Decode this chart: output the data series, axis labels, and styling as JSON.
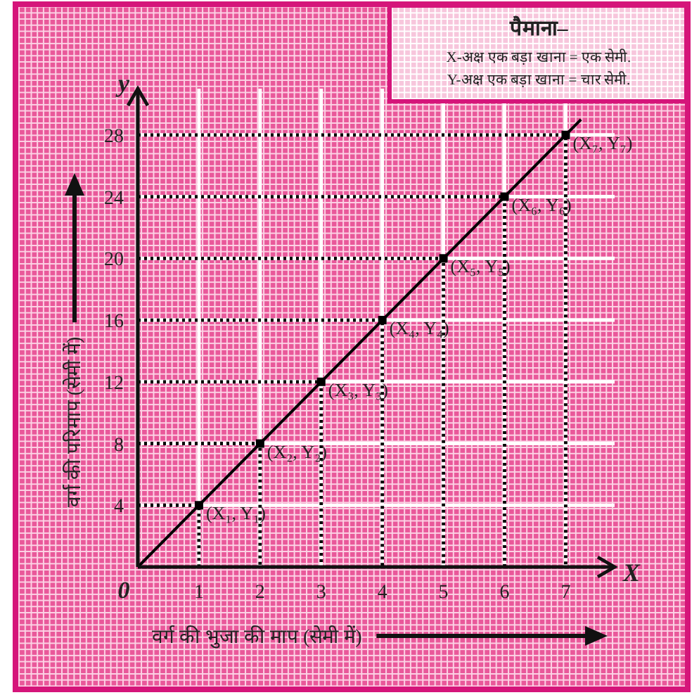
{
  "chart_data": {
    "type": "line",
    "xlabel": "वर्ग की भुजा की माप (सेमी में)",
    "ylabel": "वर्ग की परिमाप (सेमी में)",
    "xlim": [
      0,
      7.8
    ],
    "ylim": [
      0,
      31
    ],
    "xticks": [
      {
        "value": 0,
        "label": "0"
      },
      1,
      2,
      3,
      4,
      5,
      6,
      7
    ],
    "yticks": [
      4,
      8,
      12,
      16,
      20,
      24,
      28
    ],
    "grid": true,
    "series": [
      {
        "color": "#000000",
        "marker": "none",
        "line_style": "solid",
        "x": [
          0,
          7.25
        ],
        "values": [
          0,
          29
        ]
      },
      {
        "type": "scatter",
        "color": "#000000",
        "marker": "square",
        "x": [
          1,
          2,
          3,
          4,
          5,
          6,
          7
        ],
        "values": [
          4,
          8,
          12,
          16,
          20,
          24,
          28
        ]
      },
      {
        "color": "#000000",
        "marker": "none",
        "line_style": "dotted",
        "x": [
          0,
          1,
          1
        ],
        "values": [
          4,
          4,
          0
        ]
      },
      {
        "color": "#000000",
        "marker": "none",
        "line_style": "dotted",
        "x": [
          0,
          2,
          2
        ],
        "values": [
          8,
          8,
          0
        ]
      },
      {
        "color": "#000000",
        "marker": "none",
        "line_style": "dotted",
        "x": [
          0,
          3,
          3
        ],
        "values": [
          12,
          12,
          0
        ]
      },
      {
        "color": "#000000",
        "marker": "none",
        "line_style": "dotted",
        "x": [
          0,
          4,
          4
        ],
        "values": [
          16,
          16,
          0
        ]
      },
      {
        "color": "#000000",
        "marker": "none",
        "line_style": "dotted",
        "x": [
          0,
          5,
          5
        ],
        "values": [
          20,
          20,
          0
        ]
      },
      {
        "color": "#000000",
        "marker": "none",
        "line_style": "dotted",
        "x": [
          0,
          6,
          6
        ],
        "values": [
          24,
          24,
          0
        ]
      },
      {
        "color": "#000000",
        "marker": "none",
        "line_style": "dotted",
        "x": [
          0,
          7,
          7
        ],
        "values": [
          28,
          28,
          0
        ]
      }
    ],
    "annotations": [
      "पैमाना–\nX-अक्ष एक बड़ा खाना = एक सेमी.\nY-अक्ष एक बड़ा खाना = चार सेमी.",
      "X",
      "y",
      {
        "text": "(X₁, Y₁)",
        "x": 1,
        "y": 4
      },
      {
        "text": "(X₂, Y₂)",
        "x": 2,
        "y": 8
      },
      {
        "text": "(X₃, Y₃)",
        "x": 3,
        "y": 12
      },
      {
        "text": "(X₄, Y₄)",
        "x": 4,
        "y": 16
      },
      {
        "text": "(X₅, Y₅)",
        "x": 5,
        "y": 20
      },
      {
        "text": "(X₆, Y₆)",
        "x": 6,
        "y": 24
      },
      {
        "text": "(X₇, Y₇)",
        "x": 7,
        "y": 28
      }
    ]
  }
}
